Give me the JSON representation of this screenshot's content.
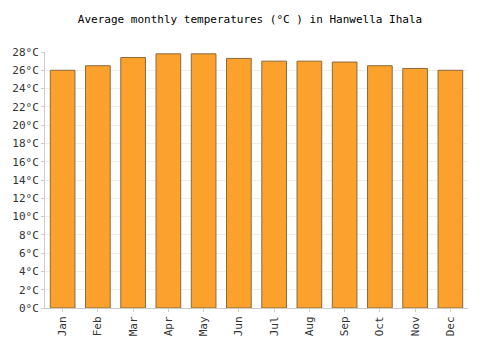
{
  "chart_data": {
    "type": "bar",
    "title": "Average monthly temperatures (°C ) in Hanwella Ihala",
    "categories": [
      "Jan",
      "Feb",
      "Mar",
      "Apr",
      "May",
      "Jun",
      "Jul",
      "Aug",
      "Sep",
      "Oct",
      "Nov",
      "Dec"
    ],
    "values": [
      26.0,
      26.5,
      27.4,
      27.8,
      27.8,
      27.3,
      27.0,
      27.0,
      26.9,
      26.5,
      26.2,
      26.0
    ],
    "color": "#fca22c",
    "ylim": [
      0,
      28
    ],
    "yticks": [
      {
        "value": 0,
        "label": "0°C"
      },
      {
        "value": 2,
        "label": "2°C"
      },
      {
        "value": 4,
        "label": "4°C"
      },
      {
        "value": 6,
        "label": "6°C"
      },
      {
        "value": 8,
        "label": "8°C"
      },
      {
        "value": 10,
        "label": "10°C"
      },
      {
        "value": 12,
        "label": "12°C"
      },
      {
        "value": 14,
        "label": "14°C"
      },
      {
        "value": 16,
        "label": "16°C"
      },
      {
        "value": 18,
        "label": "18°C"
      },
      {
        "value": 20,
        "label": "20°C"
      },
      {
        "value": 22,
        "label": "22°C"
      },
      {
        "value": 24,
        "label": "24°C"
      },
      {
        "value": 26,
        "label": "26°C"
      },
      {
        "value": 28,
        "label": "28°C"
      }
    ],
    "grid": true
  }
}
